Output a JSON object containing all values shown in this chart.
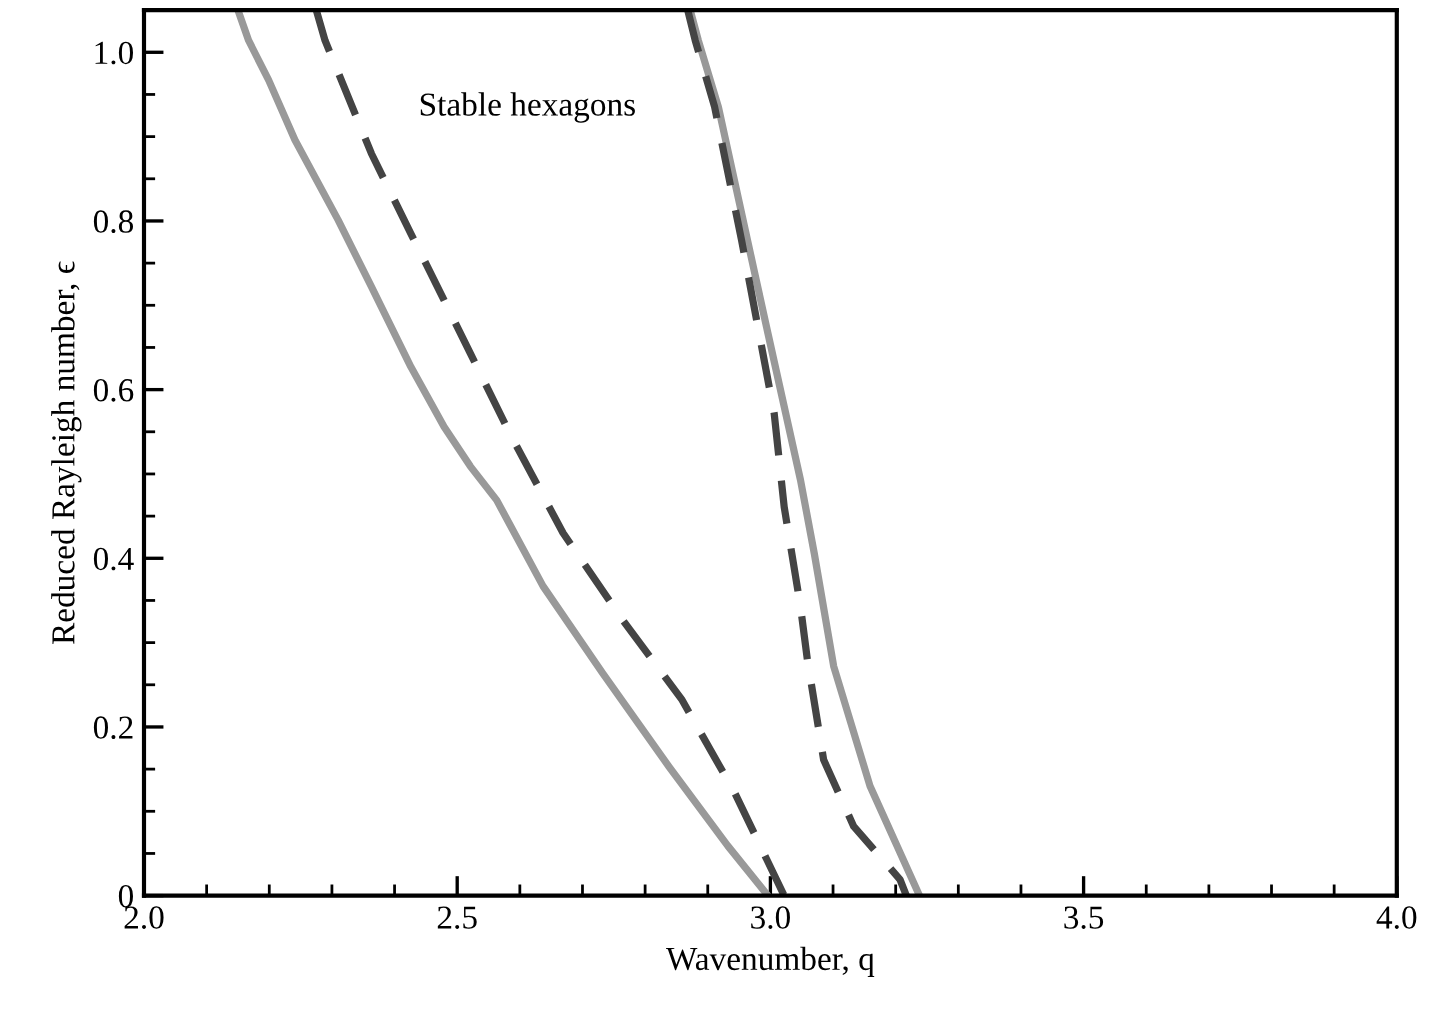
{
  "chart_data": {
    "type": "line",
    "xlabel": "Wavenumber, q",
    "ylabel": "Reduced Rayleigh number, ϵ",
    "annotations": [
      "Stable hexagons"
    ],
    "xlim": [
      2.0,
      4.0
    ],
    "ylim": [
      0,
      1.05
    ],
    "xticks": [
      {
        "value": 2,
        "label": "2.0"
      },
      2.5,
      {
        "value": 3,
        "label": "3.0"
      },
      3.5,
      {
        "value": 4,
        "label": "4.0"
      }
    ],
    "yticks": [
      0,
      0.2,
      0.4,
      0.6,
      0.8,
      {
        "value": 1,
        "label": "1.0"
      }
    ],
    "grid": false,
    "legend": false,
    "marker": "none",
    "series": [
      {
        "color": "#999999",
        "line_style": "solid",
        "x": [
          2.15,
          2.167,
          2.199,
          2.241,
          2.31,
          2.363,
          2.426,
          2.479,
          2.521,
          2.563,
          2.637,
          2.732,
          2.838,
          2.932,
          2.996
        ],
        "values": [
          1.05,
          1.014,
          0.967,
          0.896,
          0.801,
          0.722,
          0.627,
          0.556,
          0.509,
          0.469,
          0.367,
          0.264,
          0.153,
          0.059,
          0
        ]
      },
      {
        "color": "#444444",
        "line_style": "dashed",
        "x": [
          2.275,
          2.289,
          2.363,
          2.426,
          2.447,
          2.479,
          2.521,
          2.584,
          2.669,
          2.764,
          2.859,
          2.943,
          3.022
        ],
        "values": [
          1.05,
          1.014,
          0.88,
          0.785,
          0.754,
          0.706,
          0.643,
          0.548,
          0.43,
          0.327,
          0.232,
          0.122,
          0
        ]
      },
      {
        "color": "#999999",
        "line_style": "solid",
        "x": [
          2.872,
          2.885,
          2.917,
          2.975,
          2.996,
          3.048,
          3.07,
          3.101,
          3.159,
          3.238
        ],
        "values": [
          1.05,
          1.014,
          0.935,
          0.738,
          0.667,
          0.493,
          0.406,
          0.272,
          0.13,
          0
        ]
      },
      {
        "color": "#444444",
        "line_style": "dashed",
        "x": [
          2.868,
          2.88,
          2.911,
          2.954,
          3.006,
          3.022,
          3.048,
          3.059,
          3.085,
          3.133,
          3.207,
          3.217
        ],
        "values": [
          1.05,
          1.014,
          0.935,
          0.777,
          0.572,
          0.461,
          0.343,
          0.28,
          0.161,
          0.082,
          0.019,
          0
        ]
      }
    ]
  }
}
